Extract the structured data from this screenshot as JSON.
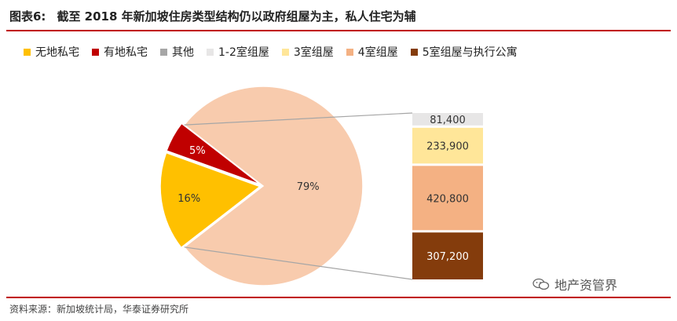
{
  "header": {
    "label": "图表6:",
    "title": "截至 2018 年新加坡住房类型结构仍以政府组屋为主，私人住宅为辅"
  },
  "legend": [
    {
      "label": "无地私宅",
      "color": "#ffc000"
    },
    {
      "label": "有地私宅",
      "color": "#c00000"
    },
    {
      "label": "其他",
      "color": "#a6a6a6"
    },
    {
      "label": "1-2室组屋",
      "color": "#e7e6e6"
    },
    {
      "label": "3室组屋",
      "color": "#ffe699"
    },
    {
      "label": "4室组屋",
      "color": "#f4b183"
    },
    {
      "label": "5室组屋与执行公寓",
      "color": "#843c0c"
    }
  ],
  "chart_data": {
    "type": "pie",
    "pie": {
      "slices": [
        {
          "label": "79%",
          "value": 79,
          "color": "#f8cbad"
        },
        {
          "label": "16%",
          "value": 16,
          "color": "#ffc000"
        },
        {
          "label": "5%",
          "value": 5,
          "color": "#c00000"
        }
      ]
    },
    "stacked_bar": {
      "segments": [
        {
          "label": "81,400",
          "value": 81400,
          "color": "#e7e6e6"
        },
        {
          "label": "233,900",
          "value": 233900,
          "color": "#ffe699"
        },
        {
          "label": "420,800",
          "value": 420800,
          "color": "#f4b183"
        },
        {
          "label": "307,200",
          "value": 307200,
          "color": "#843c0c"
        }
      ]
    }
  },
  "footer": {
    "source": "资料来源：新加坡统计局，华泰证券研究所",
    "watermark": "地产资管界"
  }
}
